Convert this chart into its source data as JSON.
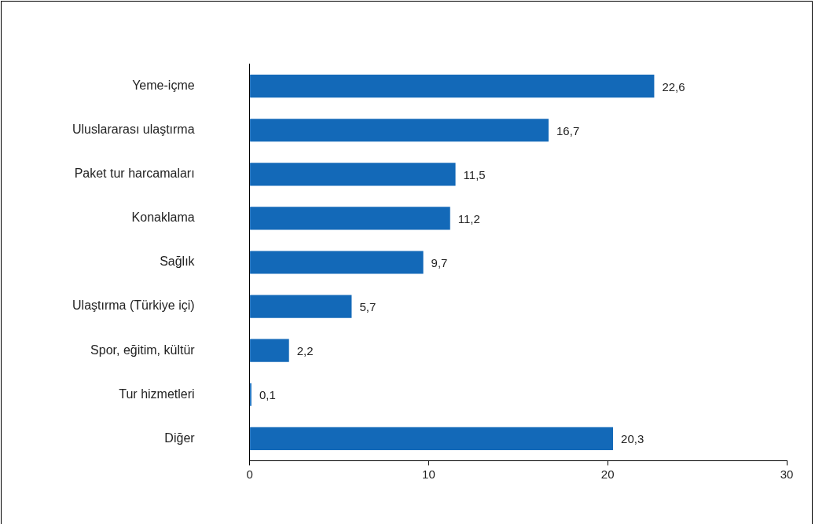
{
  "chart_data": {
    "type": "bar",
    "orientation": "horizontal",
    "categories": [
      "Yeme-içme",
      "Uluslararası ulaştırma",
      "Paket tur harcamaları",
      "Konaklama",
      "Sağlık",
      "Ulaştırma (Türkiye içi)",
      "Spor, eğitim, kültür",
      "Tur hizmetleri",
      "Diğer"
    ],
    "values": [
      22.6,
      16.7,
      11.5,
      11.2,
      9.7,
      5.7,
      2.2,
      0.1,
      20.3
    ],
    "value_labels": [
      "22,6",
      "16,7",
      "11,5",
      "11,2",
      "9,7",
      "5,7",
      "2,2",
      "0,1",
      "20,3"
    ],
    "color": "#1369b8",
    "xlim": [
      0,
      30
    ],
    "xticks": [
      0,
      10,
      20,
      30
    ],
    "grid": false,
    "legend": false
  }
}
